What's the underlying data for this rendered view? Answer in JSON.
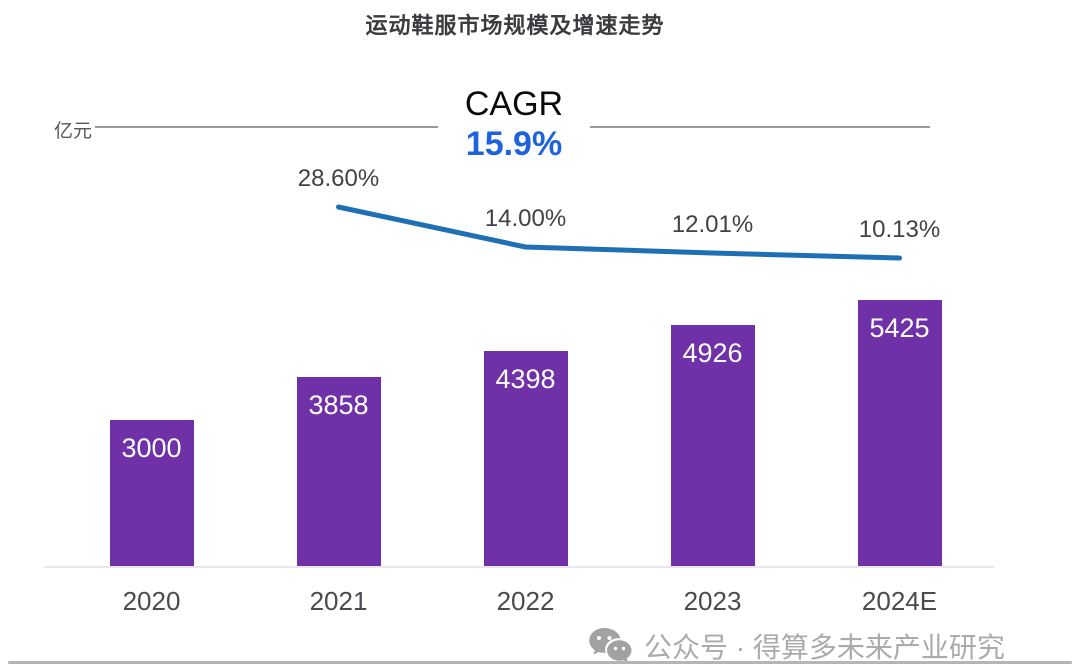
{
  "title": "运动鞋服市场规模及增速走势",
  "unit_label": "亿元",
  "cagr": {
    "label": "CAGR",
    "value": "15.9%"
  },
  "watermark": {
    "icon": "wechat-icon",
    "text": "公众号 · 得算多未来产业研究"
  },
  "colors": {
    "bar": "#7031a8",
    "line": "#1f6fb4",
    "cagr_value": "#1e63dc",
    "bar_value_text": "#ffffff",
    "rate_label_text": "#414147",
    "watermark": "#ababab"
  },
  "chart_data": {
    "type": "bar",
    "title": "运动鞋服市场规模及增速走势",
    "ylabel": "亿元",
    "categories": [
      "2020",
      "2021",
      "2022",
      "2023",
      "2024E"
    ],
    "values": [
      3000,
      3858,
      4398,
      4926,
      5425
    ],
    "value_labels": [
      "3000",
      "3858",
      "4398",
      "4926",
      "5425"
    ],
    "ylim": [
      0,
      5700
    ],
    "grid": false,
    "legend": false,
    "cagr": "15.9%",
    "growth_line": {
      "type": "line",
      "categories": [
        "2021",
        "2022",
        "2023",
        "2024E"
      ],
      "values": [
        28.6,
        14.0,
        12.01,
        10.13
      ],
      "labels": [
        "28.60%",
        "14.00%",
        "12.01%",
        "10.13%"
      ],
      "position": "above-bars"
    }
  }
}
